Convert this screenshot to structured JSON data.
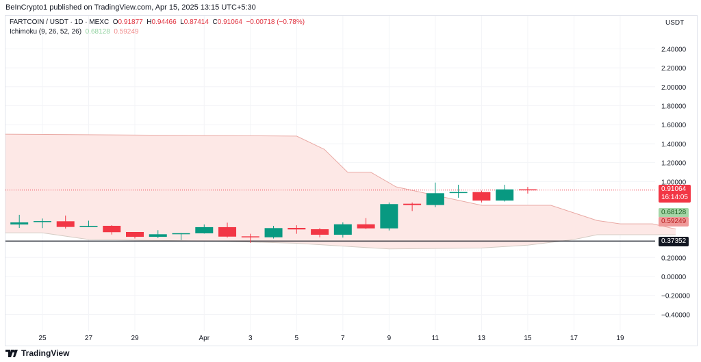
{
  "publisher": "BeInCrypto1 published on TradingView.com, Apr 15, 2025 13:15 UTC+5:30",
  "legend": {
    "symbol": "FARTCOIN / USDT · 1D · MEXC",
    "o_label": "O",
    "o": "0.91877",
    "h_label": "H",
    "h": "0.94466",
    "l_label": "L",
    "l": "0.87414",
    "c_label": "C",
    "c": "0.91064",
    "change": "−0.00718 (−0.78%)",
    "indicator": "Ichimoku (9, 26, 52, 26)",
    "ind_v1": "0.68128",
    "ind_v2": "0.59249"
  },
  "currency": "USDT",
  "price_labels": {
    "last": "0.91064",
    "countdown": "16:14:05",
    "span_a": "0.68128",
    "span_b": "0.59249",
    "hline": "0.37352"
  },
  "footer": {
    "brand": "TradingView"
  },
  "colors": {
    "up": "#089981",
    "down": "#f23645",
    "cloud": "#fde8e6",
    "cloud_edge": "#e9a9a4",
    "hline": "#131722"
  },
  "chart_data": {
    "type": "candlestick",
    "ylim": [
      -0.55,
      2.65
    ],
    "yticks": [
      "2.40000",
      "2.20000",
      "2.00000",
      "1.80000",
      "1.60000",
      "1.40000",
      "1.20000",
      "1.00000",
      "0.20000",
      "0.00000",
      "−0.20000",
      "−0.40000"
    ],
    "ytick_values": [
      2.4,
      2.2,
      2.0,
      1.8,
      1.6,
      1.4,
      1.2,
      1.0,
      0.2,
      0.0,
      -0.2,
      -0.4
    ],
    "xticks": [
      {
        "label": "25",
        "day": 1
      },
      {
        "label": "27",
        "day": 3
      },
      {
        "label": "29",
        "day": 5
      },
      {
        "label": "Apr",
        "day": 8
      },
      {
        "label": "3",
        "day": 10
      },
      {
        "label": "5",
        "day": 12
      },
      {
        "label": "7",
        "day": 14
      },
      {
        "label": "9",
        "day": 16
      },
      {
        "label": "11",
        "day": 18
      },
      {
        "label": "13",
        "day": 20
      },
      {
        "label": "15",
        "day": 22
      },
      {
        "label": "17",
        "day": 24
      },
      {
        "label": "19",
        "day": 26
      }
    ],
    "candles": [
      {
        "date": "Mar 24",
        "o": 0.548,
        "h": 0.65,
        "l": 0.512,
        "c": 0.57
      },
      {
        "date": "Mar 25",
        "o": 0.575,
        "h": 0.611,
        "l": 0.51,
        "c": 0.584
      },
      {
        "date": "Mar 26",
        "o": 0.582,
        "h": 0.642,
        "l": 0.505,
        "c": 0.522
      },
      {
        "date": "Mar 27",
        "o": 0.522,
        "h": 0.588,
        "l": 0.52,
        "c": 0.534
      },
      {
        "date": "Mar 28",
        "o": 0.534,
        "h": 0.541,
        "l": 0.442,
        "c": 0.467
      },
      {
        "date": "Mar 29",
        "o": 0.469,
        "h": 0.469,
        "l": 0.4,
        "c": 0.418
      },
      {
        "date": "Mar 30",
        "o": 0.418,
        "h": 0.488,
        "l": 0.405,
        "c": 0.445
      },
      {
        "date": "Mar 31",
        "o": 0.447,
        "h": 0.458,
        "l": 0.383,
        "c": 0.456
      },
      {
        "date": "Apr 1",
        "o": 0.455,
        "h": 0.548,
        "l": 0.452,
        "c": 0.52
      },
      {
        "date": "Apr 2",
        "o": 0.52,
        "h": 0.567,
        "l": 0.41,
        "c": 0.42
      },
      {
        "date": "Apr 3",
        "o": 0.423,
        "h": 0.45,
        "l": 0.354,
        "c": 0.413
      },
      {
        "date": "Apr 4",
        "o": 0.413,
        "h": 0.534,
        "l": 0.4,
        "c": 0.51
      },
      {
        "date": "Apr 5",
        "o": 0.512,
        "h": 0.54,
        "l": 0.45,
        "c": 0.496
      },
      {
        "date": "Apr 6",
        "o": 0.498,
        "h": 0.51,
        "l": 0.413,
        "c": 0.44
      },
      {
        "date": "Apr 7",
        "o": 0.44,
        "h": 0.57,
        "l": 0.41,
        "c": 0.55
      },
      {
        "date": "Apr 8",
        "o": 0.55,
        "h": 0.615,
        "l": 0.5,
        "c": 0.507
      },
      {
        "date": "Apr 9",
        "o": 0.507,
        "h": 0.78,
        "l": 0.485,
        "c": 0.763
      },
      {
        "date": "Apr 10",
        "o": 0.767,
        "h": 0.78,
        "l": 0.69,
        "c": 0.753
      },
      {
        "date": "Apr 11",
        "o": 0.753,
        "h": 0.99,
        "l": 0.73,
        "c": 0.878
      },
      {
        "date": "Apr 12",
        "o": 0.88,
        "h": 0.967,
        "l": 0.83,
        "c": 0.89
      },
      {
        "date": "Apr 13",
        "o": 0.89,
        "h": 0.905,
        "l": 0.78,
        "c": 0.8
      },
      {
        "date": "Apr 14",
        "o": 0.8,
        "h": 0.967,
        "l": 0.79,
        "c": 0.918
      },
      {
        "date": "Apr 15",
        "o": 0.91877,
        "h": 0.94466,
        "l": 0.87414,
        "c": 0.91064
      }
    ],
    "cloud_upper": [
      [
        -0.6,
        1.5
      ],
      [
        12,
        1.48
      ],
      [
        13.2,
        1.34
      ],
      [
        14.2,
        1.1
      ],
      [
        15.2,
        1.1
      ],
      [
        16.3,
        0.945
      ],
      [
        20,
        0.75
      ],
      [
        23,
        0.75
      ],
      [
        25,
        0.59
      ],
      [
        26,
        0.555
      ],
      [
        27.4,
        0.555
      ],
      [
        28.4,
        0.5
      ]
    ],
    "cloud_lower": [
      [
        -0.6,
        0.46
      ],
      [
        1,
        0.46
      ],
      [
        3,
        0.39
      ],
      [
        9,
        0.37
      ],
      [
        12,
        0.35
      ],
      [
        14,
        0.32
      ],
      [
        16,
        0.29
      ],
      [
        20,
        0.3
      ],
      [
        22,
        0.33
      ],
      [
        24,
        0.39
      ],
      [
        25,
        0.44
      ],
      [
        28.4,
        0.44
      ]
    ],
    "last_price": 0.91064,
    "horizontal_line": 0.37352
  }
}
